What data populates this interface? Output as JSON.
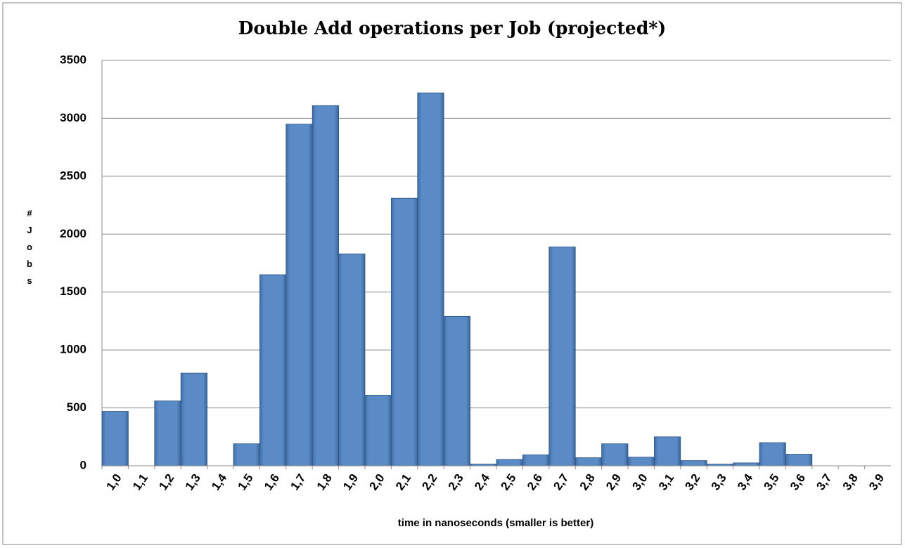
{
  "chart_data": {
    "type": "bar",
    "title": "Double Add operations per Job (projected*)",
    "x_label": "time in nanoseconds (smaller is better)",
    "y_label": "# Jobs",
    "categories": [
      "1,0",
      "1,1",
      "1,2",
      "1,3",
      "1,4",
      "1,5",
      "1,6",
      "1,7",
      "1,8",
      "1,9",
      "2,0",
      "2,1",
      "2,2",
      "2,3",
      "2,4",
      "2,5",
      "2,6",
      "2,7",
      "2,8",
      "2,9",
      "3,0",
      "3,1",
      "3,2",
      "3,3",
      "3,4",
      "3,5",
      "3,6",
      "3,7",
      "3,8",
      "3,9"
    ],
    "values": [
      470,
      0,
      560,
      800,
      0,
      190,
      1650,
      2950,
      3110,
      1830,
      610,
      2310,
      3220,
      1290,
      15,
      55,
      95,
      1890,
      70,
      190,
      75,
      250,
      45,
      15,
      25,
      200,
      100,
      0,
      0,
      0
    ],
    "color": "#4f81bd",
    "ylim": [
      0,
      3500
    ],
    "yticks": [
      0,
      500,
      1000,
      1500,
      2000,
      2500,
      3000,
      3500
    ],
    "grid": true
  }
}
